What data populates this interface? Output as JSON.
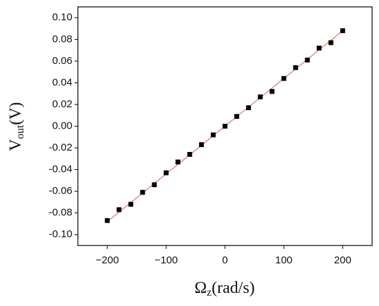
{
  "chart_data": {
    "type": "scatter",
    "x_label": {
      "main": "Ω",
      "sub": "z",
      "unit": "(rad/s)"
    },
    "y_label": {
      "main": "V",
      "sub": "out",
      "unit": "(V)"
    },
    "x": [
      -200,
      -180,
      -160,
      -140,
      -120,
      -100,
      -80,
      -60,
      -40,
      -20,
      0,
      20,
      40,
      60,
      80,
      100,
      120,
      140,
      160,
      180,
      200
    ],
    "values": [
      -0.087,
      -0.077,
      -0.072,
      -0.061,
      -0.054,
      -0.043,
      -0.033,
      -0.026,
      -0.017,
      -0.008,
      0.0,
      0.009,
      0.017,
      0.027,
      0.032,
      0.044,
      0.054,
      0.061,
      0.072,
      0.077,
      0.088
    ],
    "color": "#000000",
    "fit": {
      "x": [
        -200,
        200
      ],
      "values": [
        -0.088,
        0.088
      ],
      "color": "#e07070"
    },
    "xlim": [
      -250,
      250
    ],
    "xticks": [
      {
        "value": -200,
        "label": "−200"
      },
      {
        "value": -100,
        "label": "−100"
      },
      0,
      100,
      200
    ],
    "ylim": [
      -0.11,
      0.11
    ],
    "yticks": [
      {
        "value": -0.1,
        "label": "-0.10"
      },
      {
        "value": -0.08,
        "label": "-0.08"
      },
      {
        "value": -0.06,
        "label": "-0.06"
      },
      {
        "value": -0.04,
        "label": "-0.04"
      },
      {
        "value": -0.02,
        "label": "-0.02"
      },
      {
        "value": 0,
        "label": "0.00"
      },
      {
        "value": 0.02,
        "label": "0.02"
      },
      {
        "value": 0.04,
        "label": "0.04"
      },
      {
        "value": 0.06,
        "label": "0.06"
      },
      {
        "value": 0.08,
        "label": "0.08"
      },
      {
        "value": 0.1,
        "label": "0.10"
      }
    ]
  }
}
